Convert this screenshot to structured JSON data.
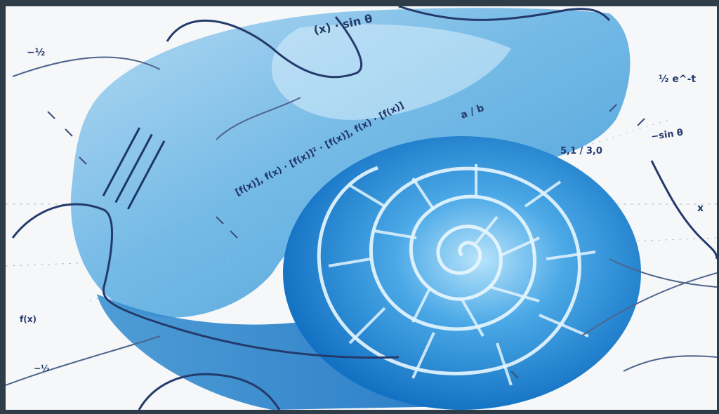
{
  "image": {
    "subject": "nautilus-shell-over-math-graph-paper",
    "colors": {
      "frame": "#2f3d49",
      "paper": "#f4f6f8",
      "wash_light": "#bfe0f5",
      "wash_mid": "#6fb8e6",
      "wash_deep": "#1b7fc9",
      "ink": "#2a3e6a",
      "ink_light": "#6c7f9e",
      "shell_line": "#e9f6ff"
    },
    "labels": {
      "formula_top": "(x) · sin θ",
      "fraction_top": "½ e^-t",
      "ratio_right": "5,1 / 3,0",
      "right_edge": "−sin θ",
      "fraction_left": "−½",
      "long_formula": "[f(x)], f(x) · [f(x)]² · [f(x)], f(x) · [f(x)]",
      "mid_fraction": "a / b",
      "left_small": "f(x)",
      "bottom_small": "−½",
      "axis_mark": "x"
    }
  }
}
